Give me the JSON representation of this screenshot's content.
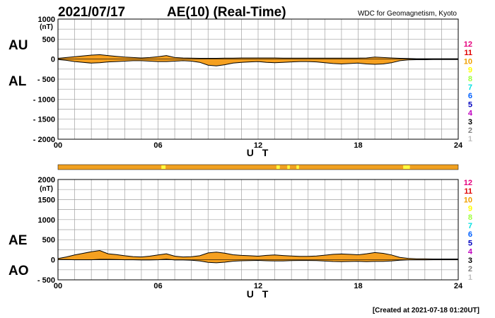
{
  "header": {
    "date": "2021/07/17",
    "title": "AE(10) (Real-Time)",
    "source": "WDC for Geomagnetism, Kyoto"
  },
  "footer": {
    "created": "[Created at 2021-07-18 01:20UT]"
  },
  "legend": {
    "labels": [
      "12",
      "11",
      "10",
      "9",
      "8",
      "7",
      "6",
      "5",
      "4",
      "3",
      "2",
      "1"
    ],
    "colors": [
      "#e6007e",
      "#e00000",
      "#f0a000",
      "#ffff00",
      "#a0ff40",
      "#00e0e0",
      "#0060ff",
      "#0000c0",
      "#c000c0",
      "#000000",
      "#808080",
      "#c0c0c0"
    ]
  },
  "colors": {
    "fill": "#f5a020",
    "station_bar": "#f0a020",
    "station_alt": "#ffff40",
    "grid": "#a0a0a0"
  },
  "chart_data": [
    {
      "type": "area",
      "upper_label": "AU",
      "lower_label": "AL",
      "ylabel": "(nT)",
      "xlabel": "U T",
      "ylim": [
        -2000,
        1000
      ],
      "yticks": [
        1000,
        500,
        0,
        -500,
        -1000,
        -1500,
        -2000
      ],
      "ytick_labels": [
        "1000",
        "500",
        "0",
        "- 500",
        "- 1000",
        "- 1500",
        "- 2000"
      ],
      "xlim": [
        0,
        24
      ],
      "xticks": [
        0,
        6,
        12,
        18,
        24
      ],
      "xtick_labels": [
        "00",
        "06",
        "12",
        "18",
        "24"
      ],
      "grid": true,
      "x": [
        0,
        0.5,
        1,
        1.5,
        2,
        2.5,
        3,
        3.5,
        4,
        4.5,
        5,
        5.5,
        6,
        6.5,
        7,
        7.5,
        8,
        8.5,
        9,
        9.5,
        10,
        10.5,
        11,
        11.5,
        12,
        12.5,
        13,
        13.5,
        14,
        14.5,
        15,
        15.5,
        16,
        16.5,
        17,
        17.5,
        18,
        18.5,
        19,
        19.5,
        20,
        20.5,
        21,
        21.5,
        22,
        22.5,
        23,
        23.5,
        24
      ],
      "series": [
        {
          "name": "AU",
          "values": [
            20,
            40,
            60,
            80,
            100,
            110,
            90,
            70,
            50,
            40,
            30,
            40,
            60,
            90,
            40,
            30,
            25,
            20,
            20,
            20,
            25,
            25,
            30,
            30,
            30,
            30,
            30,
            25,
            25,
            25,
            25,
            25,
            25,
            25,
            25,
            25,
            25,
            30,
            50,
            40,
            30,
            20,
            15,
            10,
            10,
            10,
            10,
            10,
            10
          ]
        },
        {
          "name": "AL",
          "values": [
            -10,
            -30,
            -60,
            -80,
            -100,
            -90,
            -70,
            -60,
            -50,
            -40,
            -40,
            -50,
            -60,
            -60,
            -50,
            -40,
            -50,
            -80,
            -150,
            -170,
            -140,
            -100,
            -80,
            -70,
            -60,
            -80,
            -90,
            -80,
            -70,
            -60,
            -60,
            -70,
            -90,
            -110,
            -120,
            -110,
            -100,
            -120,
            -130,
            -120,
            -90,
            -40,
            -20,
            -15,
            -15,
            -10,
            -10,
            -10,
            -10
          ]
        }
      ]
    },
    {
      "type": "area",
      "upper_label": "AE",
      "lower_label": "AO",
      "ylabel": "(nT)",
      "xlabel": "U T",
      "ylim": [
        -500,
        2000
      ],
      "yticks": [
        2000,
        1500,
        1000,
        500,
        0,
        -500
      ],
      "ytick_labels": [
        "2000",
        "1500",
        "1000",
        "500",
        "0",
        "- 500"
      ],
      "xlim": [
        0,
        24
      ],
      "xticks": [
        0,
        6,
        12,
        18,
        24
      ],
      "xtick_labels": [
        "00",
        "06",
        "12",
        "18",
        "24"
      ],
      "grid": true,
      "x": [
        0,
        0.5,
        1,
        1.5,
        2,
        2.5,
        3,
        3.5,
        4,
        4.5,
        5,
        5.5,
        6,
        6.5,
        7,
        7.5,
        8,
        8.5,
        9,
        9.5,
        10,
        10.5,
        11,
        11.5,
        12,
        12.5,
        13,
        13.5,
        14,
        14.5,
        15,
        15.5,
        16,
        16.5,
        17,
        17.5,
        18,
        18.5,
        19,
        19.5,
        20,
        20.5,
        21,
        21.5,
        22,
        22.5,
        23,
        23.5,
        24
      ],
      "series": [
        {
          "name": "AE",
          "values": [
            30,
            70,
            120,
            160,
            200,
            230,
            150,
            130,
            100,
            80,
            70,
            90,
            120,
            150,
            90,
            70,
            75,
            100,
            170,
            190,
            165,
            125,
            110,
            100,
            90,
            110,
            120,
            105,
            95,
            85,
            85,
            95,
            115,
            135,
            145,
            135,
            125,
            150,
            180,
            160,
            120,
            60,
            35,
            25,
            25,
            20,
            20,
            20,
            20
          ]
        },
        {
          "name": "AO",
          "values": [
            5,
            5,
            0,
            0,
            0,
            10,
            10,
            5,
            0,
            0,
            -5,
            -5,
            0,
            15,
            -5,
            -5,
            -10,
            -30,
            -65,
            -75,
            -60,
            -35,
            -25,
            -20,
            -15,
            -25,
            -30,
            -28,
            -22,
            -18,
            -18,
            -22,
            -32,
            -42,
            -48,
            -42,
            -38,
            -45,
            -40,
            -40,
            -30,
            -10,
            -3,
            -3,
            -3,
            0,
            0,
            0,
            0
          ]
        }
      ]
    }
  ]
}
